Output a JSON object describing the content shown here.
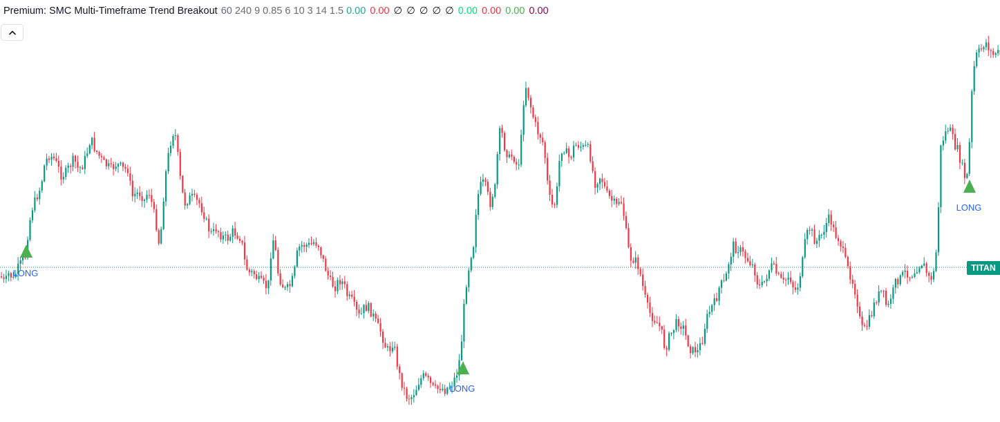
{
  "legend": {
    "title": "Premium: SMC Multi-Timeframe Trend Breakout",
    "params": "60 240 9 0.85 6 10 3 14 1.5",
    "values": [
      {
        "text": "0.00",
        "color": "#22ab94"
      },
      {
        "text": "0.00",
        "color": "#f23645"
      },
      {
        "text": "∅",
        "color": "#131722"
      },
      {
        "text": "∅",
        "color": "#131722"
      },
      {
        "text": "∅",
        "color": "#131722"
      },
      {
        "text": "∅",
        "color": "#131722"
      },
      {
        "text": "∅",
        "color": "#131722"
      },
      {
        "text": "0.00",
        "color": "#00e676"
      },
      {
        "text": "0.00",
        "color": "#f23645"
      },
      {
        "text": "0.00",
        "color": "#4caf50"
      },
      {
        "text": "0.00",
        "color": "#880e4f"
      }
    ]
  },
  "collapse_button_icon": "chevron-up-icon",
  "price_tag": {
    "label": "TITAN",
    "color": "#089981"
  },
  "colors": {
    "up": "#089981",
    "down": "#f23645",
    "signal": "#4caf50",
    "signal_text": "#2962ff"
  },
  "signals": [
    {
      "label": "LONG"
    },
    {
      "label": "LONG"
    },
    {
      "label": "LONG"
    }
  ],
  "chart_data": {
    "type": "candlestick",
    "series_anchors": [
      [
        0,
        400
      ],
      [
        6,
        410
      ],
      [
        12,
        395
      ],
      [
        18,
        405
      ],
      [
        24,
        390
      ],
      [
        30,
        380
      ],
      [
        36,
        370
      ],
      [
        40,
        330
      ],
      [
        46,
        300
      ],
      [
        52,
        285
      ],
      [
        58,
        270
      ],
      [
        64,
        235
      ],
      [
        70,
        225
      ],
      [
        76,
        228
      ],
      [
        82,
        240
      ],
      [
        88,
        255
      ],
      [
        94,
        250
      ],
      [
        100,
        240
      ],
      [
        106,
        230
      ],
      [
        112,
        245
      ],
      [
        118,
        240
      ],
      [
        124,
        225
      ],
      [
        130,
        200
      ],
      [
        136,
        215
      ],
      [
        142,
        225
      ],
      [
        148,
        235
      ],
      [
        154,
        240
      ],
      [
        160,
        245
      ],
      [
        166,
        238
      ],
      [
        172,
        240
      ],
      [
        178,
        245
      ],
      [
        184,
        245
      ],
      [
        190,
        285
      ],
      [
        196,
        280
      ],
      [
        202,
        280
      ],
      [
        208,
        290
      ],
      [
        214,
        275
      ],
      [
        220,
        300
      ],
      [
        226,
        330
      ],
      [
        230,
        360
      ],
      [
        236,
        280
      ],
      [
        240,
        240
      ],
      [
        246,
        205
      ],
      [
        250,
        190
      ],
      [
        254,
        200
      ],
      [
        258,
        245
      ],
      [
        262,
        275
      ],
      [
        266,
        295
      ],
      [
        270,
        290
      ],
      [
        276,
        285
      ],
      [
        282,
        290
      ],
      [
        288,
        295
      ],
      [
        294,
        310
      ],
      [
        300,
        330
      ],
      [
        306,
        340
      ],
      [
        312,
        330
      ],
      [
        318,
        340
      ],
      [
        324,
        345
      ],
      [
        330,
        345
      ],
      [
        336,
        335
      ],
      [
        342,
        340
      ],
      [
        348,
        345
      ],
      [
        354,
        385
      ],
      [
        360,
        395
      ],
      [
        366,
        395
      ],
      [
        372,
        405
      ],
      [
        378,
        410
      ],
      [
        384,
        415
      ],
      [
        388,
        410
      ],
      [
        392,
        350
      ],
      [
        396,
        345
      ],
      [
        400,
        390
      ],
      [
        406,
        410
      ],
      [
        412,
        420
      ],
      [
        418,
        415
      ],
      [
        424,
        400
      ],
      [
        430,
        360
      ],
      [
        436,
        355
      ],
      [
        442,
        355
      ],
      [
        448,
        355
      ],
      [
        454,
        350
      ],
      [
        460,
        355
      ],
      [
        466,
        375
      ],
      [
        472,
        395
      ],
      [
        478,
        410
      ],
      [
        484,
        415
      ],
      [
        490,
        405
      ],
      [
        496,
        410
      ],
      [
        502,
        430
      ],
      [
        508,
        435
      ],
      [
        514,
        450
      ],
      [
        520,
        460
      ],
      [
        526,
        445
      ],
      [
        532,
        445
      ],
      [
        538,
        455
      ],
      [
        544,
        470
      ],
      [
        550,
        480
      ],
      [
        556,
        500
      ],
      [
        562,
        510
      ],
      [
        566,
        495
      ],
      [
        570,
        505
      ],
      [
        576,
        540
      ],
      [
        582,
        560
      ],
      [
        588,
        575
      ],
      [
        594,
        575
      ],
      [
        600,
        565
      ],
      [
        606,
        550
      ],
      [
        612,
        545
      ],
      [
        618,
        550
      ],
      [
        624,
        560
      ],
      [
        630,
        565
      ],
      [
        636,
        560
      ],
      [
        642,
        565
      ],
      [
        648,
        560
      ],
      [
        654,
        555
      ],
      [
        660,
        540
      ],
      [
        664,
        520
      ],
      [
        668,
        480
      ],
      [
        672,
        420
      ],
      [
        676,
        395
      ],
      [
        680,
        370
      ],
      [
        684,
        355
      ],
      [
        688,
        300
      ],
      [
        692,
        275
      ],
      [
        696,
        265
      ],
      [
        700,
        265
      ],
      [
        704,
        280
      ],
      [
        708,
        295
      ],
      [
        712,
        280
      ],
      [
        716,
        270
      ],
      [
        720,
        200
      ],
      [
        724,
        185
      ],
      [
        728,
        210
      ],
      [
        732,
        220
      ],
      [
        736,
        230
      ],
      [
        740,
        225
      ],
      [
        744,
        230
      ],
      [
        748,
        245
      ],
      [
        752,
        220
      ],
      [
        756,
        150
      ],
      [
        760,
        125
      ],
      [
        764,
        140
      ],
      [
        768,
        160
      ],
      [
        772,
        175
      ],
      [
        776,
        190
      ],
      [
        780,
        195
      ],
      [
        784,
        205
      ],
      [
        788,
        230
      ],
      [
        792,
        275
      ],
      [
        796,
        295
      ],
      [
        800,
        300
      ],
      [
        804,
        285
      ],
      [
        808,
        235
      ],
      [
        812,
        215
      ],
      [
        816,
        215
      ],
      [
        820,
        225
      ],
      [
        824,
        230
      ],
      [
        828,
        215
      ],
      [
        832,
        210
      ],
      [
        836,
        210
      ],
      [
        840,
        212
      ],
      [
        844,
        215
      ],
      [
        848,
        212
      ],
      [
        852,
        220
      ],
      [
        856,
        245
      ],
      [
        860,
        265
      ],
      [
        864,
        260
      ],
      [
        868,
        255
      ],
      [
        872,
        265
      ],
      [
        876,
        280
      ],
      [
        880,
        285
      ],
      [
        884,
        290
      ],
      [
        888,
        295
      ],
      [
        892,
        300
      ],
      [
        896,
        285
      ],
      [
        900,
        300
      ],
      [
        904,
        330
      ],
      [
        908,
        360
      ],
      [
        912,
        375
      ],
      [
        916,
        375
      ],
      [
        920,
        380
      ],
      [
        924,
        390
      ],
      [
        928,
        410
      ],
      [
        932,
        430
      ],
      [
        936,
        445
      ],
      [
        940,
        455
      ],
      [
        944,
        460
      ],
      [
        948,
        465
      ],
      [
        952,
        470
      ],
      [
        956,
        480
      ],
      [
        960,
        500
      ],
      [
        964,
        500
      ],
      [
        968,
        485
      ],
      [
        972,
        480
      ],
      [
        976,
        470
      ],
      [
        980,
        465
      ],
      [
        984,
        470
      ],
      [
        988,
        475
      ],
      [
        992,
        490
      ],
      [
        996,
        500
      ],
      [
        1000,
        510
      ],
      [
        1004,
        505
      ],
      [
        1008,
        510
      ],
      [
        1012,
        500
      ],
      [
        1016,
        490
      ],
      [
        1020,
        465
      ],
      [
        1024,
        455
      ],
      [
        1028,
        445
      ],
      [
        1032,
        440
      ],
      [
        1036,
        430
      ],
      [
        1040,
        415
      ],
      [
        1044,
        410
      ],
      [
        1048,
        410
      ],
      [
        1052,
        385
      ],
      [
        1056,
        370
      ],
      [
        1060,
        355
      ],
      [
        1064,
        360
      ],
      [
        1068,
        360
      ],
      [
        1072,
        365
      ],
      [
        1076,
        370
      ],
      [
        1080,
        375
      ],
      [
        1084,
        380
      ],
      [
        1088,
        385
      ],
      [
        1092,
        395
      ],
      [
        1096,
        415
      ],
      [
        1100,
        415
      ],
      [
        1104,
        410
      ],
      [
        1108,
        400
      ],
      [
        1112,
        390
      ],
      [
        1116,
        385
      ],
      [
        1120,
        390
      ],
      [
        1124,
        400
      ],
      [
        1128,
        405
      ],
      [
        1132,
        410
      ],
      [
        1136,
        405
      ],
      [
        1140,
        400
      ],
      [
        1144,
        405
      ],
      [
        1148,
        420
      ],
      [
        1152,
        420
      ],
      [
        1156,
        400
      ],
      [
        1160,
        380
      ],
      [
        1164,
        350
      ],
      [
        1168,
        335
      ],
      [
        1172,
        330
      ],
      [
        1176,
        345
      ],
      [
        1180,
        350
      ],
      [
        1184,
        345
      ],
      [
        1188,
        340
      ],
      [
        1192,
        330
      ],
      [
        1196,
        320
      ],
      [
        1200,
        315
      ],
      [
        1204,
        330
      ],
      [
        1208,
        340
      ],
      [
        1212,
        345
      ],
      [
        1216,
        355
      ],
      [
        1220,
        370
      ],
      [
        1224,
        385
      ],
      [
        1228,
        395
      ],
      [
        1232,
        405
      ],
      [
        1236,
        420
      ],
      [
        1240,
        440
      ],
      [
        1244,
        470
      ],
      [
        1248,
        480
      ],
      [
        1252,
        475
      ],
      [
        1256,
        465
      ],
      [
        1260,
        455
      ],
      [
        1264,
        440
      ],
      [
        1268,
        430
      ],
      [
        1272,
        425
      ],
      [
        1276,
        420
      ],
      [
        1280,
        440
      ],
      [
        1284,
        445
      ],
      [
        1288,
        430
      ],
      [
        1292,
        420
      ],
      [
        1296,
        405
      ],
      [
        1300,
        405
      ],
      [
        1304,
        400
      ],
      [
        1308,
        395
      ],
      [
        1312,
        395
      ],
      [
        1316,
        400
      ],
      [
        1320,
        395
      ],
      [
        1324,
        390
      ],
      [
        1328,
        385
      ],
      [
        1332,
        380
      ],
      [
        1336,
        385
      ],
      [
        1340,
        395
      ],
      [
        1344,
        405
      ],
      [
        1348,
        400
      ],
      [
        1352,
        390
      ],
      [
        1356,
        320
      ],
      [
        1360,
        215
      ],
      [
        1364,
        200
      ],
      [
        1368,
        190
      ],
      [
        1372,
        185
      ],
      [
        1376,
        195
      ],
      [
        1380,
        210
      ],
      [
        1384,
        215
      ],
      [
        1388,
        230
      ],
      [
        1392,
        245
      ],
      [
        1396,
        260
      ],
      [
        1400,
        250
      ],
      [
        1404,
        150
      ],
      [
        1408,
        100
      ],
      [
        1412,
        80
      ],
      [
        1416,
        75
      ],
      [
        1420,
        70
      ],
      [
        1424,
        60
      ],
      [
        1428,
        65
      ],
      [
        1432,
        75
      ],
      [
        1436,
        80
      ],
      [
        1440,
        75
      ],
      [
        1447,
        80
      ]
    ]
  }
}
